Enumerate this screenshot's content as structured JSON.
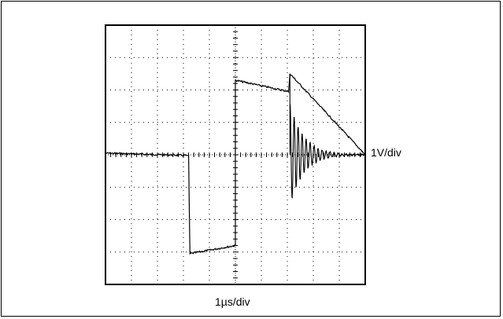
{
  "chart_data": {
    "type": "line",
    "title": "",
    "xlabel": "1µs/div",
    "ylabel": "1V/div",
    "x_divisions": 10,
    "y_divisions": 8,
    "xlim": [
      0,
      10
    ],
    "ylim": [
      -4,
      4
    ],
    "grid": "dotted",
    "series": [
      {
        "name": "",
        "color": "#000000",
        "segments": [
          {
            "from": [
              0.0,
              0.05
            ],
            "to": [
              3.1,
              -0.02
            ]
          },
          {
            "from": [
              3.2,
              -0.02
            ],
            "to": [
              3.25,
              -3.05
            ]
          },
          {
            "from": [
              3.25,
              -3.05
            ],
            "to": [
              5.0,
              -2.8
            ]
          },
          {
            "from": [
              5.0,
              -2.8
            ],
            "to": [
              5.0,
              2.3
            ]
          },
          {
            "from": [
              5.0,
              2.3
            ],
            "to": [
              7.05,
              1.95
            ]
          },
          {
            "from": [
              7.05,
              1.95
            ],
            "to": [
              7.1,
              2.5
            ]
          },
          {
            "from": [
              7.1,
              2.5
            ],
            "to": [
              10.0,
              0.0
            ]
          }
        ],
        "ringing": {
          "start_x": 7.1,
          "peak_amplitude": 1.6,
          "decay_end_x": 9.5
        }
      }
    ]
  }
}
